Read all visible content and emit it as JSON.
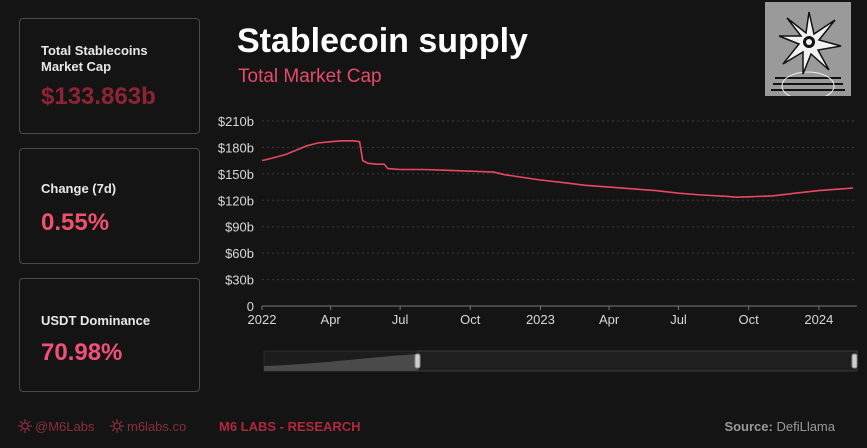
{
  "cards": [
    {
      "label": "Total Stablecoins Market Cap",
      "value": "$133.863b"
    },
    {
      "label": "Change (7d)",
      "value": "0.55%"
    },
    {
      "label": "USDT Dominance",
      "value": "70.98%"
    }
  ],
  "colors": {
    "background": "#141414",
    "line": "#e8485f",
    "accent_dark": "#8e2433",
    "accent": "#f0506e"
  },
  "footer": {
    "handle": "@M6Labs",
    "site": "m6labs.co",
    "brand": "M6 LABS - RESEARCH",
    "source_label": "Source:",
    "source_value": "DefiLlama"
  },
  "icons": {
    "avatar": "spiky-sun-avatar",
    "handle": "network-icon",
    "site": "network-icon"
  },
  "chart_data": {
    "type": "line",
    "title": "Stablecoin supply",
    "subtitle": "Total Market Cap",
    "x_ticks": [
      "2022",
      "Apr",
      "Jul",
      "Oct",
      "2023",
      "Apr",
      "Jul",
      "Oct",
      "2024"
    ],
    "y_ticks": [
      "$210b",
      "$180b",
      "$150b",
      "$120b",
      "$90b",
      "$60b",
      "$30b",
      "0"
    ],
    "ylim": [
      0,
      210
    ],
    "xlim": [
      "2022-01-01",
      "2024-02-20"
    ],
    "grid": "horizontal dashed",
    "series": [
      {
        "points": [
          [
            "2022-01-01",
            165
          ],
          [
            "2022-01-15",
            168
          ],
          [
            "2022-02-01",
            172
          ],
          [
            "2022-02-15",
            177
          ],
          [
            "2022-03-01",
            182
          ],
          [
            "2022-03-15",
            185
          ],
          [
            "2022-04-01",
            186.5
          ],
          [
            "2022-04-15",
            187.5
          ],
          [
            "2022-05-01",
            187.5
          ],
          [
            "2022-05-09",
            186.5
          ],
          [
            "2022-05-13",
            165
          ],
          [
            "2022-05-20",
            162
          ],
          [
            "2022-06-01",
            161
          ],
          [
            "2022-06-10",
            161
          ],
          [
            "2022-06-15",
            156
          ],
          [
            "2022-07-01",
            155
          ],
          [
            "2022-08-01",
            155
          ],
          [
            "2022-09-01",
            154
          ],
          [
            "2022-10-01",
            153
          ],
          [
            "2022-11-01",
            152
          ],
          [
            "2022-11-15",
            149
          ],
          [
            "2022-12-01",
            147
          ],
          [
            "2023-01-01",
            143
          ],
          [
            "2023-02-01",
            140
          ],
          [
            "2023-03-01",
            137
          ],
          [
            "2023-04-01",
            135
          ],
          [
            "2023-05-01",
            133
          ],
          [
            "2023-06-01",
            131
          ],
          [
            "2023-07-01",
            128
          ],
          [
            "2023-08-01",
            126
          ],
          [
            "2023-09-01",
            124.5
          ],
          [
            "2023-09-15",
            123.5
          ],
          [
            "2023-10-01",
            124
          ],
          [
            "2023-11-01",
            125
          ],
          [
            "2023-12-01",
            128
          ],
          [
            "2024-01-01",
            131
          ],
          [
            "2024-02-01",
            133
          ],
          [
            "2024-02-15",
            134
          ]
        ]
      }
    ]
  }
}
